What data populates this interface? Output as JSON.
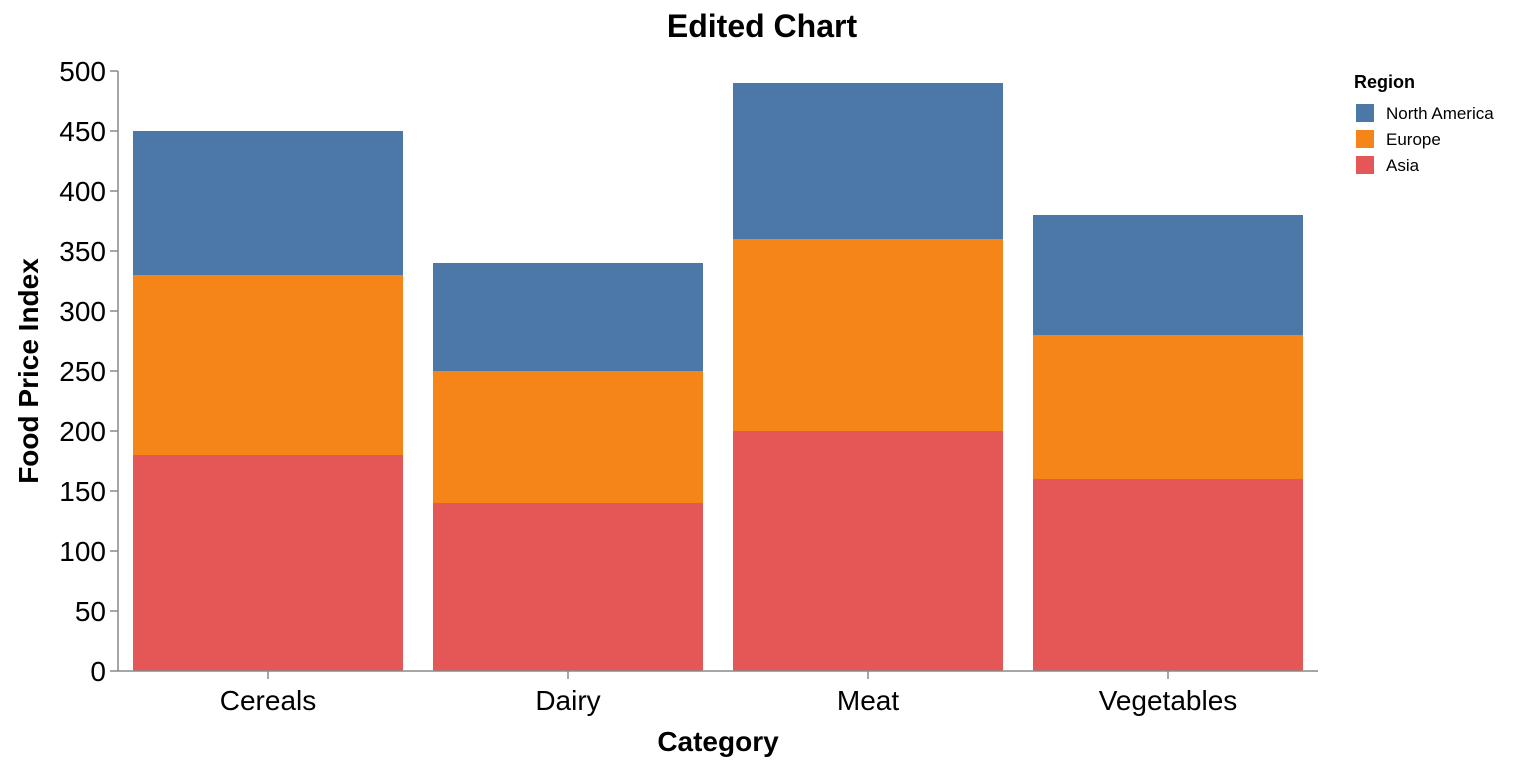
{
  "chart_data": {
    "type": "bar",
    "stacked": true,
    "title": "Edited Chart",
    "xlabel": "Category",
    "ylabel": "Food Price Index",
    "categories": [
      "Cereals",
      "Dairy",
      "Meat",
      "Vegetables"
    ],
    "ylim": [
      0,
      500
    ],
    "yticks": [
      0,
      50,
      100,
      150,
      200,
      250,
      300,
      350,
      400,
      450,
      500
    ],
    "grid": false,
    "legend": {
      "title": "Region",
      "position": "top-right"
    },
    "series": [
      {
        "name": "Asia",
        "color": "#e45756",
        "values": [
          180,
          140,
          200,
          160
        ]
      },
      {
        "name": "Europe",
        "color": "#f58518",
        "values": [
          150,
          110,
          160,
          120
        ]
      },
      {
        "name": "North America",
        "color": "#4c78a8",
        "values": [
          120,
          90,
          130,
          100
        ]
      }
    ],
    "legend_order": [
      "North America",
      "Europe",
      "Asia"
    ]
  }
}
